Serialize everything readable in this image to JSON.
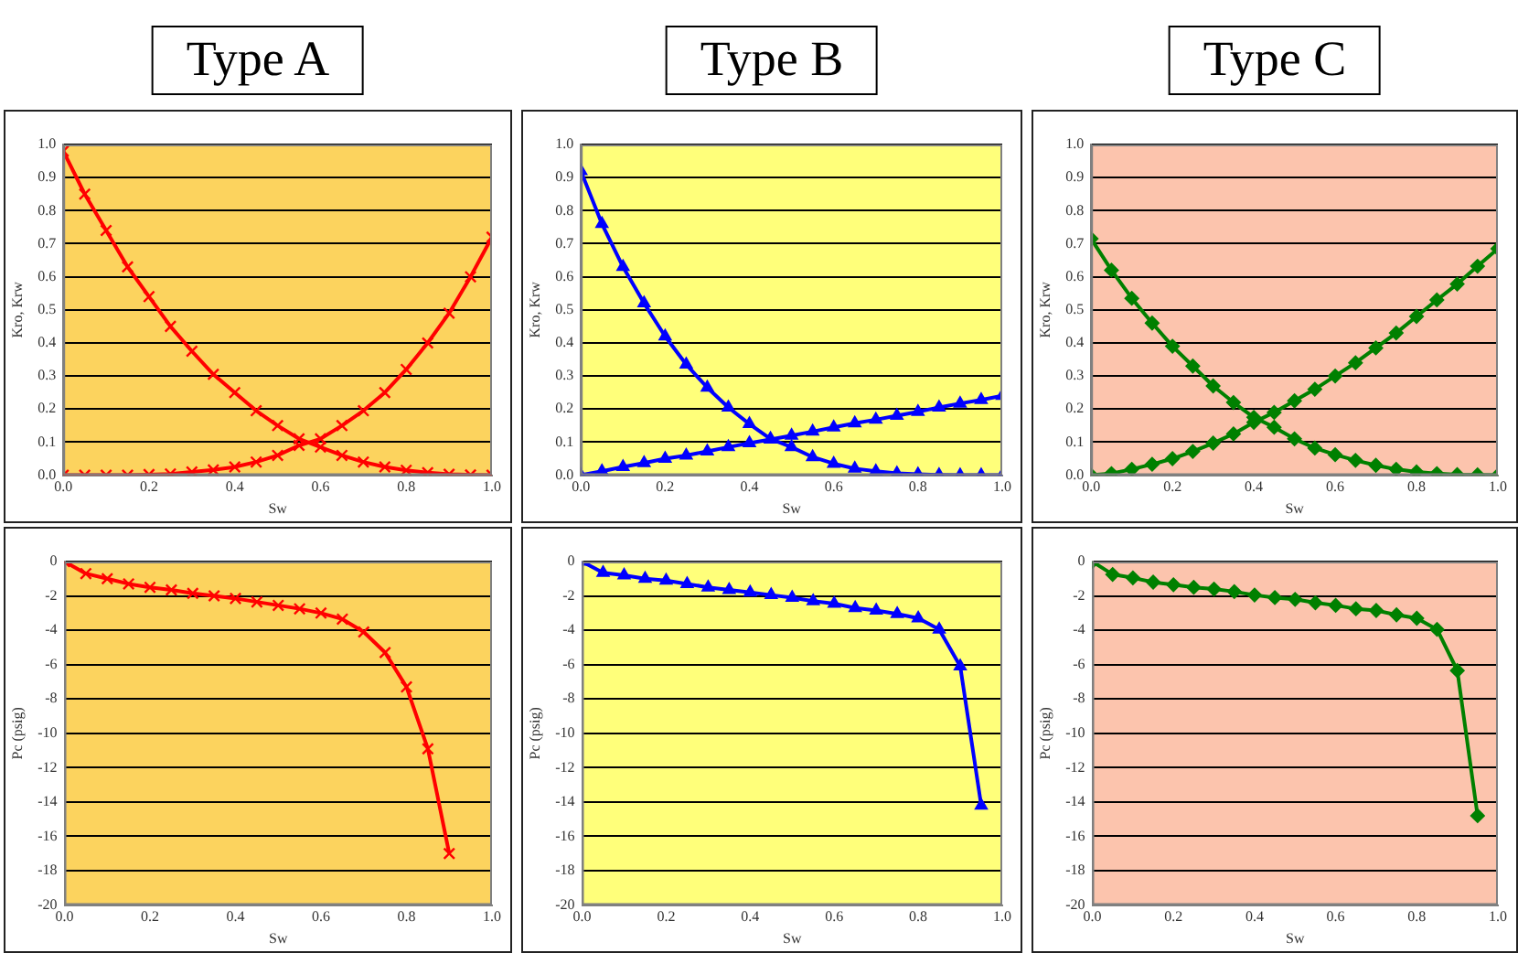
{
  "chart_data": [
    {
      "type": "line",
      "title": "Type A",
      "xlabel": "Sw",
      "ylabel": "Kro, Krw",
      "marker": "cross",
      "grid": "y",
      "legend": false,
      "x": [
        0,
        0.05,
        0.1,
        0.15,
        0.2,
        0.25,
        0.3,
        0.35,
        0.4,
        0.45,
        0.5,
        0.55,
        0.6,
        0.65,
        0.7,
        0.75,
        0.8,
        0.85,
        0.9,
        0.95,
        1.0
      ],
      "series": [
        {
          "color": "#ff0000",
          "values": [
            0.98,
            0.85,
            0.74,
            0.63,
            0.54,
            0.45,
            0.375,
            0.305,
            0.25,
            0.195,
            0.15,
            0.11,
            0.085,
            0.06,
            0.04,
            0.025,
            0.015,
            0.008,
            0.003,
            0.001,
            0
          ]
        },
        {
          "color": "#ff0000",
          "values": [
            0,
            0,
            0,
            0,
            0.002,
            0.004,
            0.01,
            0.016,
            0.025,
            0.04,
            0.06,
            0.09,
            0.11,
            0.15,
            0.195,
            0.25,
            0.32,
            0.4,
            0.49,
            0.6,
            0.72
          ]
        }
      ],
      "xlim": [
        0,
        1
      ],
      "xticks": [
        {
          "value": 0,
          "label": "0.0"
        },
        {
          "value": 0.2,
          "label": "0.2"
        },
        {
          "value": 0.4,
          "label": "0.4"
        },
        {
          "value": 0.6,
          "label": "0.6"
        },
        {
          "value": 0.8,
          "label": "0.8"
        },
        {
          "value": 1,
          "label": "1.0"
        }
      ],
      "ylim": [
        0,
        1
      ],
      "yticks": [
        {
          "value": 0,
          "label": "0.0"
        },
        {
          "value": 0.1,
          "label": "0.1"
        },
        {
          "value": 0.2,
          "label": "0.2"
        },
        {
          "value": 0.3,
          "label": "0.3"
        },
        {
          "value": 0.4,
          "label": "0.4"
        },
        {
          "value": 0.5,
          "label": "0.5"
        },
        {
          "value": 0.6,
          "label": "0.6"
        },
        {
          "value": 0.7,
          "label": "0.7"
        },
        {
          "value": 0.8,
          "label": "0.8"
        },
        {
          "value": 0.9,
          "label": "0.9"
        },
        {
          "value": 1,
          "label": "1.0"
        }
      ]
    },
    {
      "type": "line",
      "title": "Type B",
      "xlabel": "Sw",
      "ylabel": "Kro, Krw",
      "marker": "triangle",
      "grid": "y",
      "legend": false,
      "x": [
        0,
        0.05,
        0.1,
        0.15,
        0.2,
        0.25,
        0.3,
        0.35,
        0.4,
        0.45,
        0.5,
        0.55,
        0.6,
        0.65,
        0.7,
        0.75,
        0.8,
        0.85,
        0.9,
        0.95,
        1.0
      ],
      "series": [
        {
          "color": "#0000ff",
          "values": [
            0.92,
            0.76,
            0.63,
            0.52,
            0.42,
            0.335,
            0.265,
            0.205,
            0.155,
            0.11,
            0.085,
            0.055,
            0.035,
            0.02,
            0.012,
            0.006,
            0.003,
            0.001,
            0,
            0,
            0
          ]
        },
        {
          "color": "#0000ff",
          "values": [
            0,
            0.012,
            0.025,
            0.037,
            0.05,
            0.06,
            0.072,
            0.085,
            0.097,
            0.108,
            0.12,
            0.132,
            0.145,
            0.157,
            0.168,
            0.18,
            0.192,
            0.205,
            0.217,
            0.228,
            0.24
          ]
        }
      ],
      "xlim": [
        0,
        1
      ],
      "xticks": [
        {
          "value": 0,
          "label": "0.0"
        },
        {
          "value": 0.2,
          "label": "0.2"
        },
        {
          "value": 0.4,
          "label": "0.4"
        },
        {
          "value": 0.6,
          "label": "0.6"
        },
        {
          "value": 0.8,
          "label": "0.8"
        },
        {
          "value": 1,
          "label": "1.0"
        }
      ],
      "ylim": [
        0,
        1
      ],
      "yticks": [
        {
          "value": 0,
          "label": "0.0"
        },
        {
          "value": 0.1,
          "label": "0.1"
        },
        {
          "value": 0.2,
          "label": "0.2"
        },
        {
          "value": 0.3,
          "label": "0.3"
        },
        {
          "value": 0.4,
          "label": "0.4"
        },
        {
          "value": 0.5,
          "label": "0.5"
        },
        {
          "value": 0.6,
          "label": "0.6"
        },
        {
          "value": 0.7,
          "label": "0.7"
        },
        {
          "value": 0.8,
          "label": "0.8"
        },
        {
          "value": 0.9,
          "label": "0.9"
        },
        {
          "value": 1,
          "label": "1.0"
        }
      ]
    },
    {
      "type": "line",
      "title": "Type C",
      "xlabel": "Sw",
      "ylabel": "Kro, Krw",
      "marker": "diamond",
      "grid": "y",
      "legend": false,
      "x": [
        0,
        0.05,
        0.1,
        0.15,
        0.2,
        0.25,
        0.3,
        0.35,
        0.4,
        0.45,
        0.5,
        0.55,
        0.6,
        0.65,
        0.7,
        0.75,
        0.8,
        0.85,
        0.9,
        0.95,
        1.0
      ],
      "series": [
        {
          "color": "#008000",
          "values": [
            0.715,
            0.62,
            0.535,
            0.46,
            0.39,
            0.33,
            0.27,
            0.22,
            0.175,
            0.145,
            0.11,
            0.082,
            0.062,
            0.045,
            0.03,
            0.018,
            0.01,
            0.005,
            0.002,
            0.001,
            0
          ]
        },
        {
          "color": "#008000",
          "values": [
            0,
            0.005,
            0.018,
            0.033,
            0.05,
            0.072,
            0.097,
            0.125,
            0.16,
            0.19,
            0.225,
            0.26,
            0.3,
            0.34,
            0.385,
            0.43,
            0.48,
            0.53,
            0.578,
            0.632,
            0.685
          ]
        }
      ],
      "xlim": [
        0,
        1
      ],
      "xticks": [
        {
          "value": 0,
          "label": "0.0"
        },
        {
          "value": 0.2,
          "label": "0.2"
        },
        {
          "value": 0.4,
          "label": "0.4"
        },
        {
          "value": 0.6,
          "label": "0.6"
        },
        {
          "value": 0.8,
          "label": "0.8"
        },
        {
          "value": 1,
          "label": "1.0"
        }
      ],
      "ylim": [
        0,
        1
      ],
      "yticks": [
        {
          "value": 0,
          "label": "0.0"
        },
        {
          "value": 0.1,
          "label": "0.1"
        },
        {
          "value": 0.2,
          "label": "0.2"
        },
        {
          "value": 0.3,
          "label": "0.3"
        },
        {
          "value": 0.4,
          "label": "0.4"
        },
        {
          "value": 0.5,
          "label": "0.5"
        },
        {
          "value": 0.6,
          "label": "0.6"
        },
        {
          "value": 0.7,
          "label": "0.7"
        },
        {
          "value": 0.8,
          "label": "0.8"
        },
        {
          "value": 0.9,
          "label": "0.9"
        },
        {
          "value": 1,
          "label": "1.0"
        }
      ]
    },
    {
      "type": "line",
      "xlabel": "Sw",
      "ylabel": "Pc (psig)",
      "marker": "cross",
      "grid": "y",
      "legend": false,
      "x": [
        0,
        0.05,
        0.1,
        0.15,
        0.2,
        0.25,
        0.3,
        0.35,
        0.4,
        0.45,
        0.5,
        0.55,
        0.6,
        0.65,
        0.7,
        0.75,
        0.8,
        0.85,
        0.9
      ],
      "series": [
        {
          "color": "#ff0000",
          "values": [
            0,
            -0.7,
            -1.0,
            -1.3,
            -1.5,
            -1.65,
            -1.85,
            -2.0,
            -2.15,
            -2.35,
            -2.55,
            -2.75,
            -3.0,
            -3.35,
            -4.1,
            -5.3,
            -7.3,
            -10.9,
            -17.0
          ]
        }
      ],
      "xlim": [
        0,
        1
      ],
      "xticks": [
        {
          "value": 0,
          "label": "0.0"
        },
        {
          "value": 0.2,
          "label": "0.2"
        },
        {
          "value": 0.4,
          "label": "0.4"
        },
        {
          "value": 0.6,
          "label": "0.6"
        },
        {
          "value": 0.8,
          "label": "0.8"
        },
        {
          "value": 1,
          "label": "1.0"
        }
      ],
      "ylim": [
        -20,
        0
      ],
      "yticks": [
        0,
        -2,
        -4,
        -6,
        -8,
        -10,
        -12,
        -14,
        -16,
        -18,
        -20
      ]
    },
    {
      "type": "line",
      "xlabel": "Sw",
      "ylabel": "Pc (psig)",
      "marker": "triangle",
      "grid": "y",
      "legend": false,
      "x": [
        0,
        0.05,
        0.1,
        0.15,
        0.2,
        0.25,
        0.3,
        0.35,
        0.4,
        0.45,
        0.5,
        0.55,
        0.6,
        0.65,
        0.7,
        0.75,
        0.8,
        0.85,
        0.9,
        0.95
      ],
      "series": [
        {
          "color": "#0000ff",
          "values": [
            0,
            -0.65,
            -0.8,
            -1.0,
            -1.1,
            -1.3,
            -1.5,
            -1.65,
            -1.8,
            -1.95,
            -2.1,
            -2.3,
            -2.45,
            -2.7,
            -2.85,
            -3.05,
            -3.3,
            -3.95,
            -6.1,
            -14.2
          ]
        }
      ],
      "xlim": [
        0,
        1
      ],
      "xticks": [
        {
          "value": 0,
          "label": "0.0"
        },
        {
          "value": 0.2,
          "label": "0.2"
        },
        {
          "value": 0.4,
          "label": "0.4"
        },
        {
          "value": 0.6,
          "label": "0.6"
        },
        {
          "value": 0.8,
          "label": "0.8"
        },
        {
          "value": 1,
          "label": "1.0"
        }
      ],
      "ylim": [
        -20,
        0
      ],
      "yticks": [
        0,
        -2,
        -4,
        -6,
        -8,
        -10,
        -12,
        -14,
        -16,
        -18,
        -20
      ]
    },
    {
      "type": "line",
      "xlabel": "Sw",
      "ylabel": "Pc (psig)",
      "marker": "diamond",
      "grid": "y",
      "legend": false,
      "x": [
        0,
        0.05,
        0.1,
        0.15,
        0.2,
        0.25,
        0.3,
        0.35,
        0.4,
        0.45,
        0.5,
        0.55,
        0.6,
        0.65,
        0.7,
        0.75,
        0.8,
        0.85,
        0.9,
        0.95
      ],
      "series": [
        {
          "color": "#008000",
          "values": [
            0,
            -0.75,
            -0.95,
            -1.2,
            -1.35,
            -1.5,
            -1.6,
            -1.75,
            -1.95,
            -2.1,
            -2.2,
            -2.4,
            -2.55,
            -2.75,
            -2.85,
            -3.1,
            -3.3,
            -3.95,
            -6.35,
            -14.8
          ]
        }
      ],
      "xlim": [
        0,
        1
      ],
      "xticks": [
        {
          "value": 0,
          "label": "0.0"
        },
        {
          "value": 0.2,
          "label": "0.2"
        },
        {
          "value": 0.4,
          "label": "0.4"
        },
        {
          "value": 0.6,
          "label": "0.6"
        },
        {
          "value": 0.8,
          "label": "0.8"
        },
        {
          "value": 1,
          "label": "1.0"
        }
      ],
      "ylim": [
        -20,
        0
      ],
      "yticks": [
        0,
        -2,
        -4,
        -6,
        -8,
        -10,
        -12,
        -14,
        -16,
        -18,
        -20
      ]
    }
  ]
}
